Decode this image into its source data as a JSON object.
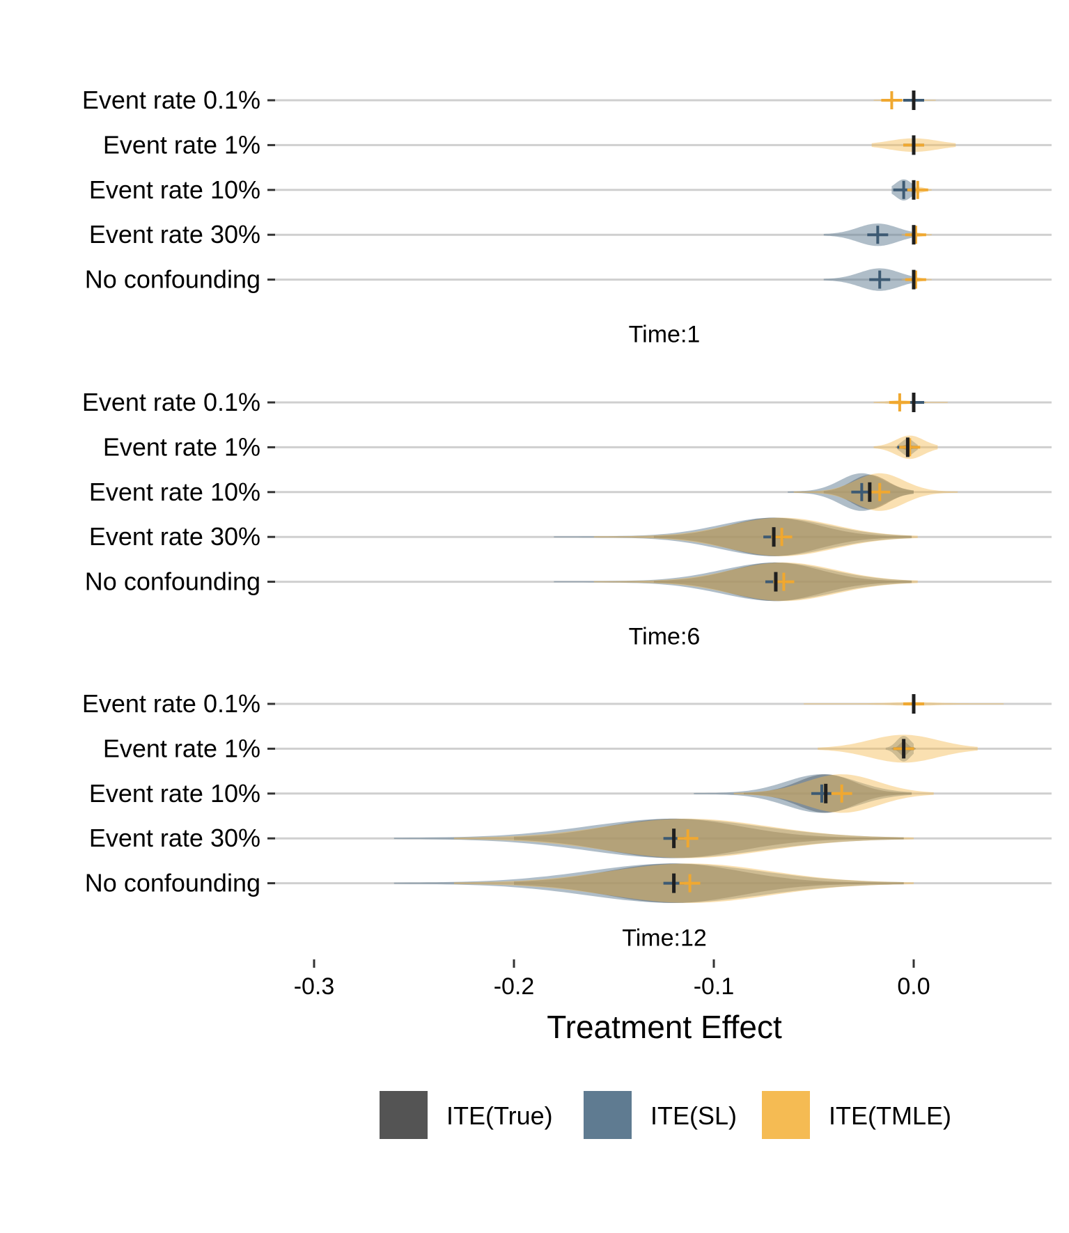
{
  "chart_data": {
    "type": "violin",
    "xlabel": "Treatment Effect",
    "xlim": [
      -0.33,
      0.068
    ],
    "x_ticks": [
      {
        "value": -0.3,
        "label": "-0.3"
      },
      {
        "value": -0.2,
        "label": "-0.2"
      },
      {
        "value": -0.1,
        "label": "-0.1"
      },
      {
        "value": 0.0,
        "label": "0.0"
      }
    ],
    "categories": [
      "Event rate 0.1%",
      "Event rate 1%",
      "Event rate 10%",
      "Event rate 30%",
      "No confounding"
    ],
    "legend": {
      "position": "bottom",
      "entries": [
        {
          "name": "ITE(True)",
          "color": "#545454"
        },
        {
          "name": "ITE(SL)",
          "color": "#5f7b91"
        },
        {
          "name": "ITE(TMLE)",
          "color": "#f5bb53"
        }
      ]
    },
    "panels": [
      {
        "label": "Time:1",
        "rows": [
          {
            "category": "Event rate 0.1%",
            "true": {
              "mean": 0.0,
              "sd": 0.0005,
              "hw": 0.003
            },
            "sl": {
              "mean": 0.0,
              "sd": 0.0012,
              "hw": 0.012,
              "min": -0.004,
              "max": 0.004
            },
            "tmle": {
              "mean": -0.011,
              "sd": 0.004,
              "hw": 0.012,
              "min": -0.02,
              "max": 0.011
            }
          },
          {
            "category": "Event rate 1%",
            "true": {
              "mean": 0.0,
              "sd": 0.0008,
              "hw": 0.004
            },
            "sl": {
              "mean": 0.0,
              "sd": 0.0015,
              "hw": 0.012,
              "min": -0.005,
              "max": 0.005
            },
            "tmle": {
              "mean": 0.0,
              "sd": 0.012,
              "hw": 0.28,
              "min": -0.021,
              "max": 0.021
            }
          },
          {
            "category": "Event rate 10%",
            "true": {
              "mean": 0.0,
              "sd": 0.001,
              "hw": 0.01
            },
            "sl": {
              "mean": -0.005,
              "sd": 0.004,
              "hw": 0.45,
              "min": -0.011,
              "max": 0.0
            },
            "tmle": {
              "mean": 0.002,
              "sd": 0.003,
              "hw": 0.12,
              "min": -0.004,
              "max": 0.009
            }
          },
          {
            "category": "Event rate 30%",
            "true": {
              "mean": 0.0,
              "sd": 0.001,
              "hw": 0.02
            },
            "sl": {
              "mean": -0.018,
              "sd": 0.01,
              "hw": 0.48,
              "min": -0.045,
              "max": -0.001
            },
            "tmle": {
              "mean": 0.001,
              "sd": 0.003,
              "hw": 0.08,
              "min": -0.006,
              "max": 0.009
            }
          },
          {
            "category": "No confounding",
            "true": {
              "mean": 0.0,
              "sd": 0.001,
              "hw": 0.02
            },
            "sl": {
              "mean": -0.017,
              "sd": 0.01,
              "hw": 0.48,
              "min": -0.045,
              "max": -0.001
            },
            "tmle": {
              "mean": 0.001,
              "sd": 0.003,
              "hw": 0.08,
              "min": -0.006,
              "max": 0.009
            }
          }
        ]
      },
      {
        "label": "Time:6",
        "rows": [
          {
            "category": "Event rate 0.1%",
            "true": {
              "mean": 0.0,
              "sd": 0.0006,
              "hw": 0.003
            },
            "sl": {
              "mean": 0.0,
              "sd": 0.0015,
              "hw": 0.012,
              "min": -0.005,
              "max": 0.006
            },
            "tmle": {
              "mean": -0.007,
              "sd": 0.005,
              "hw": 0.07,
              "min": -0.02,
              "max": 0.017
            }
          },
          {
            "category": "Event rate 1%",
            "true": {
              "mean": -0.003,
              "sd": 0.002,
              "hw": 0.1
            },
            "sl": {
              "mean": -0.003,
              "sd": 0.003,
              "hw": 0.36,
              "min": -0.008,
              "max": 0.002
            },
            "tmle": {
              "mean": -0.002,
              "sd": 0.007,
              "hw": 0.5,
              "min": -0.02,
              "max": 0.012
            }
          },
          {
            "category": "Event rate 10%",
            "true": {
              "mean": -0.022,
              "sd": 0.009,
              "hw": 0.75,
              "min": -0.045,
              "max": 0.0
            },
            "sl": {
              "mean": -0.026,
              "sd": 0.011,
              "hw": 0.82,
              "min": -0.063,
              "max": 0.0
            },
            "tmle": {
              "mean": -0.017,
              "sd": 0.012,
              "hw": 0.82,
              "min": -0.06,
              "max": 0.022
            }
          },
          {
            "category": "Event rate 30%",
            "true": {
              "mean": -0.07,
              "sd": 0.022,
              "hw": 0.84,
              "min": -0.13,
              "max": -0.001
            },
            "sl": {
              "mean": -0.07,
              "sd": 0.027,
              "hw": 0.84,
              "min": -0.18,
              "max": -0.001
            },
            "tmle": {
              "mean": -0.066,
              "sd": 0.026,
              "hw": 0.84,
              "min": -0.16,
              "max": 0.002
            }
          },
          {
            "category": "No confounding",
            "true": {
              "mean": -0.069,
              "sd": 0.022,
              "hw": 0.84,
              "min": -0.13,
              "max": -0.001
            },
            "sl": {
              "mean": -0.069,
              "sd": 0.027,
              "hw": 0.84,
              "min": -0.18,
              "max": -0.001
            },
            "tmle": {
              "mean": -0.065,
              "sd": 0.026,
              "hw": 0.84,
              "min": -0.16,
              "max": 0.002
            }
          }
        ]
      },
      {
        "label": "Time:12",
        "rows": [
          {
            "category": "Event rate 0.1%",
            "true": {
              "mean": 0.0,
              "sd": 0.0006,
              "hw": 0.04
            },
            "sl": {
              "mean": 0.0,
              "sd": 0.0008,
              "hw": 0.06,
              "min": -0.003,
              "max": 0.003
            },
            "tmle": {
              "mean": 0.0,
              "sd": 0.01,
              "hw": 0.06,
              "min": -0.055,
              "max": 0.045
            }
          },
          {
            "category": "Event rate 1%",
            "true": {
              "mean": -0.005,
              "sd": 0.002,
              "hw": 0.3
            },
            "sl": {
              "mean": -0.005,
              "sd": 0.0035,
              "hw": 0.55,
              "min": -0.014,
              "max": 0.0
            },
            "tmle": {
              "mean": -0.005,
              "sd": 0.017,
              "hw": 0.6,
              "min": -0.048,
              "max": 0.032
            }
          },
          {
            "category": "Event rate 10%",
            "true": {
              "mean": -0.044,
              "sd": 0.014,
              "hw": 0.84,
              "min": -0.085,
              "max": -0.001
            },
            "sl": {
              "mean": -0.046,
              "sd": 0.018,
              "hw": 0.84,
              "min": -0.11,
              "max": -0.001
            },
            "tmle": {
              "mean": -0.036,
              "sd": 0.018,
              "hw": 0.84,
              "min": -0.09,
              "max": 0.01
            }
          },
          {
            "category": "Event rate 30%",
            "true": {
              "mean": -0.12,
              "sd": 0.033,
              "hw": 0.86,
              "min": -0.2,
              "max": -0.005
            },
            "sl": {
              "mean": -0.12,
              "sd": 0.043,
              "hw": 0.86,
              "min": -0.26,
              "max": -0.005
            },
            "tmle": {
              "mean": -0.113,
              "sd": 0.04,
              "hw": 0.86,
              "min": -0.23,
              "max": 0.0
            }
          },
          {
            "category": "No confounding",
            "true": {
              "mean": -0.12,
              "sd": 0.033,
              "hw": 0.86,
              "min": -0.2,
              "max": -0.005
            },
            "sl": {
              "mean": -0.12,
              "sd": 0.043,
              "hw": 0.86,
              "min": -0.26,
              "max": -0.005
            },
            "tmle": {
              "mean": -0.112,
              "sd": 0.04,
              "hw": 0.86,
              "min": -0.23,
              "max": 0.0
            }
          }
        ]
      }
    ]
  }
}
